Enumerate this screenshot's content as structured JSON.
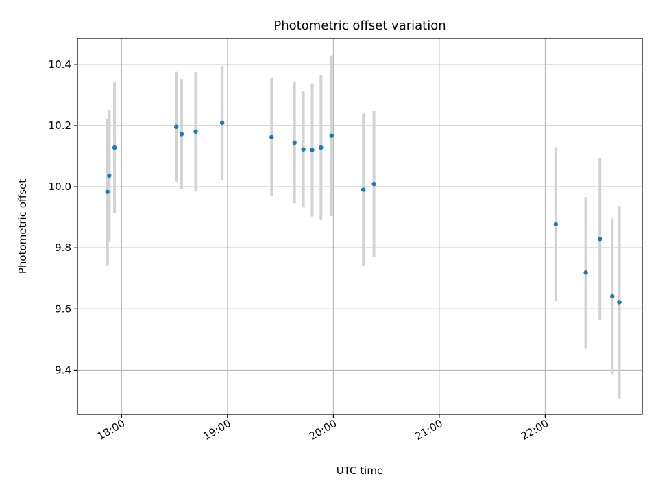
{
  "chart_data": {
    "type": "scatter",
    "title": "Photometric offset variation",
    "xlabel": "UTC time",
    "ylabel": "Photometric offset",
    "xlim": [
      "17:35",
      "22:55"
    ],
    "ylim": [
      9.255,
      10.485
    ],
    "grid": true,
    "x_ticks": [
      "18:00",
      "19:00",
      "20:00",
      "21:00",
      "22:00"
    ],
    "y_ticks": [
      "9.4",
      "9.6",
      "9.8",
      "10.0",
      "10.2",
      "10.4"
    ],
    "y_tick_values": [
      9.4,
      9.6,
      9.8,
      10.0,
      10.2,
      10.4
    ],
    "colors": {
      "point": "#1f77b4",
      "error_bar": "#d3d3d3",
      "grid": "#b0b0b0"
    },
    "points": [
      {
        "x": "17:52",
        "y": 9.983,
        "err": 0.24
      },
      {
        "x": "17:53",
        "y": 10.036,
        "err": 0.215
      },
      {
        "x": "17:56",
        "y": 10.128,
        "err": 0.215
      },
      {
        "x": "18:31",
        "y": 10.196,
        "err": 0.18
      },
      {
        "x": "18:34",
        "y": 10.172,
        "err": 0.18
      },
      {
        "x": "18:42",
        "y": 10.18,
        "err": 0.195
      },
      {
        "x": "18:57",
        "y": 10.209,
        "err": 0.187
      },
      {
        "x": "19:25",
        "y": 10.162,
        "err": 0.193
      },
      {
        "x": "19:38",
        "y": 10.144,
        "err": 0.198
      },
      {
        "x": "19:43",
        "y": 10.122,
        "err": 0.19
      },
      {
        "x": "19:48",
        "y": 10.12,
        "err": 0.218
      },
      {
        "x": "19:53",
        "y": 10.128,
        "err": 0.238
      },
      {
        "x": "19:59",
        "y": 10.167,
        "err": 0.263
      },
      {
        "x": "20:17",
        "y": 9.99,
        "err": 0.25
      },
      {
        "x": "20:23",
        "y": 10.009,
        "err": 0.238
      },
      {
        "x": "22:06",
        "y": 9.877,
        "err": 0.252
      },
      {
        "x": "22:23",
        "y": 9.719,
        "err": 0.247
      },
      {
        "x": "22:31",
        "y": 9.829,
        "err": 0.265
      },
      {
        "x": "22:38",
        "y": 9.641,
        "err": 0.255
      },
      {
        "x": "22:42",
        "y": 9.622,
        "err": 0.315
      }
    ]
  }
}
